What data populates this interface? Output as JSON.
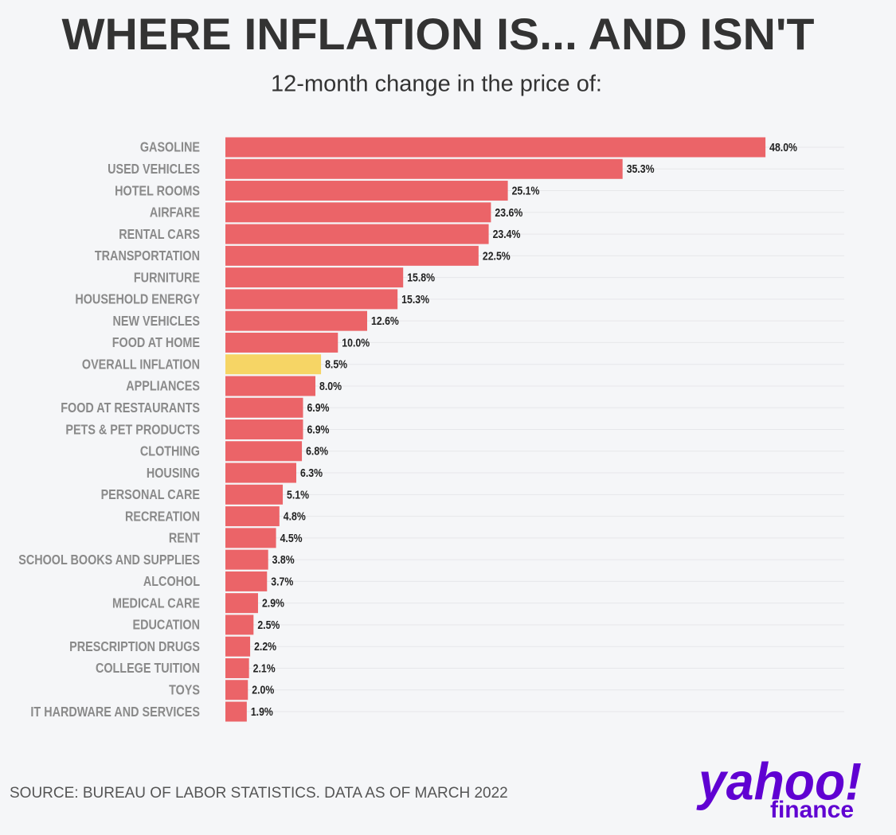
{
  "chart_data": {
    "type": "bar",
    "orientation": "horizontal",
    "title": "WHERE INFLATION IS... AND ISN'T",
    "subtitle": "12-month change in the price of:",
    "categories": [
      "GASOLINE",
      "USED VEHICLES",
      "HOTEL ROOMS",
      "AIRFARE",
      "RENTAL CARS",
      "TRANSPORTATION",
      "FURNITURE",
      "HOUSEHOLD ENERGY",
      "NEW VEHICLES",
      "FOOD AT HOME",
      "OVERALL INFLATION",
      "APPLIANCES",
      "FOOD AT RESTAURANTS",
      "PETS & PET PRODUCTS",
      "CLOTHING",
      "HOUSING",
      "PERSONAL CARE",
      "RECREATION",
      "RENT",
      "SCHOOL BOOKS AND SUPPLIES",
      "ALCOHOL",
      "MEDICAL CARE",
      "EDUCATION",
      "PRESCRIPTION DRUGS",
      "COLLEGE TUITION",
      "TOYS",
      "IT HARDWARE AND SERVICES"
    ],
    "values": [
      48.0,
      35.3,
      25.1,
      23.6,
      23.4,
      22.5,
      15.8,
      15.3,
      12.6,
      10.0,
      8.5,
      8.0,
      6.9,
      6.9,
      6.8,
      6.3,
      5.1,
      4.8,
      4.5,
      3.8,
      3.7,
      2.9,
      2.5,
      2.2,
      2.1,
      2.0,
      1.9
    ],
    "value_labels": [
      "48.0%",
      "35.3%",
      "25.1%",
      "23.6%",
      "23.4%",
      "22.5%",
      "15.8%",
      "15.3%",
      "12.6%",
      "10.0%",
      "8.5%",
      "8.0%",
      "6.9%",
      "6.9%",
      "6.8%",
      "6.3%",
      "5.1%",
      "4.8%",
      "4.5%",
      "3.8%",
      "3.7%",
      "2.9%",
      "2.5%",
      "2.2%",
      "2.1%",
      "2.0%",
      "1.9%"
    ],
    "colors": [
      "#eb6468",
      "#eb6468",
      "#eb6468",
      "#eb6468",
      "#eb6468",
      "#eb6468",
      "#eb6468",
      "#eb6468",
      "#eb6468",
      "#eb6468",
      "#f6d565",
      "#eb6468",
      "#eb6468",
      "#eb6468",
      "#eb6468",
      "#eb6468",
      "#eb6468",
      "#eb6468",
      "#eb6468",
      "#eb6468",
      "#eb6468",
      "#eb6468",
      "#eb6468",
      "#eb6468",
      "#eb6468",
      "#eb6468",
      "#eb6468"
    ],
    "xlim": [
      0,
      55
    ]
  },
  "footer": {
    "source": "SOURCE: BUREAU OF LABOR STATISTICS. DATA AS OF MARCH 2022",
    "logo": {
      "brand": "yahoo!",
      "product": "finance"
    }
  }
}
